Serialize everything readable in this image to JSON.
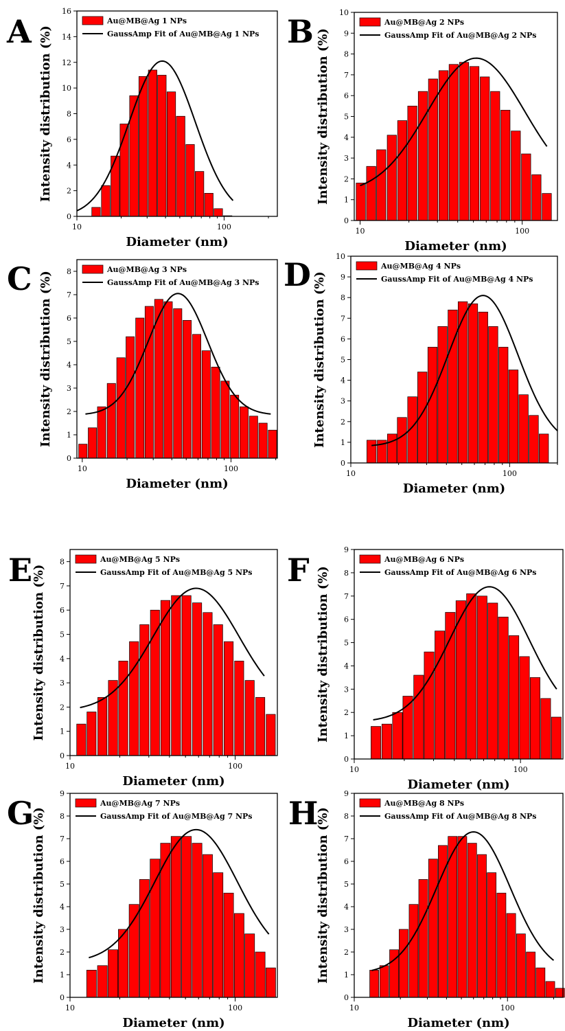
{
  "figure": {
    "panels": [
      {
        "letter": "A",
        "legend": {
          "bar_label": "Au@MB@Ag 1 NPs",
          "fit_label": "GaussAmp Fit of Au@MB@Ag 1 NPs"
        }
      },
      {
        "letter": "B",
        "legend": {
          "bar_label": "Au@MB@Ag 2 NPs",
          "fit_label": "GaussAmp Fit of Au@MB@Ag 2 NPs"
        }
      },
      {
        "letter": "C",
        "legend": {
          "bar_label": "Au@MB@Ag 3 NPs",
          "fit_label": "GaussAmp Fit of Au@MB@Ag 3 NPs"
        }
      },
      {
        "letter": "D",
        "legend": {
          "bar_label": "Au@MB@Ag 4 NPs",
          "fit_label": "GaussAmp Fit of Au@MB@Ag 4 NPs"
        }
      },
      {
        "letter": "E",
        "legend": {
          "bar_label": "Au@MB@Ag 5 NPs",
          "fit_label": "GaussAmp Fit of Au@MB@Ag 5 NPs"
        }
      },
      {
        "letter": "F",
        "legend": {
          "bar_label": "Au@MB@Ag 6 NPs",
          "fit_label": "GaussAmp Fit of Au@MB@Ag 6 NPs"
        }
      },
      {
        "letter": "G",
        "legend": {
          "bar_label": "Au@MB@Ag 7 NPs",
          "fit_label": "GaussAmp Fit of Au@MB@Ag 7 NPs"
        }
      },
      {
        "letter": "H",
        "legend": {
          "bar_label": "Au@MB@Ag 8 NPs",
          "fit_label": "GaussAmp Fit of Au@MB@Ag 8 NPs"
        }
      }
    ],
    "colors": {
      "bar_fill": "#ff0000",
      "bar_stroke": "#000000",
      "fit_line": "#000000",
      "axes": "#000000"
    }
  },
  "chart_data": [
    {
      "panel": "A",
      "type": "bar",
      "xscale": "log",
      "xlabel": "Diameter (nm)",
      "ylabel": "Intensity distribution (%)",
      "xlim": [
        10,
        230
      ],
      "ylim": [
        0,
        16
      ],
      "xticks": [
        10,
        100
      ],
      "yticks": [
        0,
        2,
        4,
        6,
        8,
        10,
        12,
        14,
        16
      ],
      "legend_position": "top-right",
      "series": [
        {
          "name": "Au@MB@Ag 1 NPs",
          "type": "bar",
          "x": [
            13.5,
            15.7,
            18.2,
            21.0,
            24.4,
            28.2,
            32.7,
            37.8,
            43.8,
            50.7,
            58.8,
            68.1,
            78.8,
            91.3,
            105.7
          ],
          "values": [
            0.7,
            2.4,
            4.7,
            7.2,
            9.4,
            10.9,
            11.4,
            11.0,
            9.7,
            7.8,
            5.6,
            3.5,
            1.8,
            0.6,
            0.05
          ]
        },
        {
          "name": "GaussAmp Fit of Au@MB@Ag 1 NPs",
          "type": "line",
          "y0": 0,
          "amplitude": 12.1,
          "xc": 38,
          "w": 0.225,
          "x_range": [
            10,
            115
          ]
        }
      ]
    },
    {
      "panel": "B",
      "type": "bar",
      "xscale": "log",
      "xlabel": "Diameter (nm)",
      "ylabel": "Intensity distribution (%)",
      "xlim": [
        9.2,
        165
      ],
      "ylim": [
        0,
        10
      ],
      "xticks": [
        10,
        100
      ],
      "yticks": [
        0,
        1,
        2,
        3,
        4,
        5,
        6,
        7,
        8,
        9,
        10
      ],
      "legend_position": "top-right",
      "series": [
        {
          "name": "Au@MB@Ag 2 NPs",
          "type": "bar",
          "x": [
            10.1,
            11.7,
            13.5,
            15.7,
            18.2,
            21.0,
            24.4,
            28.2,
            32.7,
            37.8,
            43.8,
            50.7,
            58.8,
            68.1,
            78.8,
            91.3,
            105.7,
            122.4,
            141.8
          ],
          "values": [
            1.8,
            2.6,
            3.4,
            4.1,
            4.8,
            5.5,
            6.2,
            6.8,
            7.2,
            7.5,
            7.6,
            7.4,
            6.9,
            6.2,
            5.3,
            4.3,
            3.2,
            2.2,
            1.3
          ]
        },
        {
          "name": "GaussAmp Fit of Au@MB@Ag 2 NPs",
          "type": "line",
          "y0": 1.3,
          "amplitude": 6.5,
          "xc": 52,
          "w": 0.3,
          "x_range": [
            10,
            142
          ]
        }
      ]
    },
    {
      "panel": "C",
      "type": "bar",
      "xscale": "log",
      "xlabel": "Diameter (nm)",
      "ylabel": "Intensity distribution (%)",
      "xlim": [
        9.2,
        205
      ],
      "ylim": [
        0,
        8.5
      ],
      "xticks": [
        10,
        100
      ],
      "yticks": [
        0,
        1,
        2,
        3,
        4,
        5,
        6,
        7,
        8
      ],
      "legend_position": "top-right",
      "series": [
        {
          "name": "Au@MB@Ag 3 NPs",
          "type": "bar",
          "x": [
            10.1,
            11.7,
            13.5,
            15.7,
            18.2,
            21.0,
            24.4,
            28.2,
            32.7,
            37.8,
            43.8,
            50.7,
            58.8,
            68.1,
            78.8,
            91.3,
            105.7,
            122.4,
            141.8,
            164.2,
            190.1
          ],
          "values": [
            0.6,
            1.3,
            2.2,
            3.2,
            4.3,
            5.2,
            6.0,
            6.5,
            6.8,
            6.7,
            6.4,
            5.9,
            5.3,
            4.6,
            3.9,
            3.3,
            2.7,
            2.2,
            1.8,
            1.5,
            1.2
          ]
        },
        {
          "name": "GaussAmp Fit of Au@MB@Ag 3 NPs",
          "type": "line",
          "y0": 1.85,
          "amplitude": 5.2,
          "xc": 44,
          "w": 0.2,
          "x_range": [
            10.5,
            185
          ]
        }
      ]
    },
    {
      "panel": "D",
      "type": "bar",
      "xscale": "log",
      "xlabel": "Diameter (nm)",
      "ylabel": "Intensity distribution (%)",
      "xlim": [
        10,
        200
      ],
      "ylim": [
        0,
        10
      ],
      "xticks": [
        10,
        100
      ],
      "yticks": [
        0,
        1,
        2,
        3,
        4,
        5,
        6,
        7,
        8,
        9,
        10
      ],
      "legend_position": "top-right",
      "series": [
        {
          "name": "Au@MB@Ag 4 NPs",
          "type": "bar",
          "x": [
            13.5,
            15.7,
            18.2,
            21.0,
            24.4,
            28.2,
            32.7,
            37.8,
            43.8,
            50.7,
            58.8,
            68.1,
            78.8,
            91.3,
            105.7,
            122.4,
            141.8,
            164.2
          ],
          "values": [
            1.1,
            1.1,
            1.4,
            2.2,
            3.2,
            4.4,
            5.6,
            6.6,
            7.4,
            7.8,
            7.7,
            7.3,
            6.6,
            5.6,
            4.5,
            3.3,
            2.3,
            1.4
          ]
        },
        {
          "name": "GaussAmp Fit of Au@MB@Ag 4 NPs",
          "type": "line",
          "y0": 0.8,
          "amplitude": 7.3,
          "xc": 68,
          "w": 0.22,
          "x_range": [
            13.5,
            200
          ]
        }
      ]
    },
    {
      "panel": "E",
      "type": "bar",
      "xscale": "log",
      "xlabel": "Diameter (nm)",
      "ylabel": "Intensity distribution (%)",
      "xlim": [
        10,
        180
      ],
      "ylim": [
        0,
        8.5
      ],
      "xticks": [
        10,
        100
      ],
      "yticks": [
        0,
        1,
        2,
        3,
        4,
        5,
        6,
        7,
        8
      ],
      "legend_position": "top-right",
      "series": [
        {
          "name": "Au@MB@Ag 5 NPs",
          "type": "bar",
          "x": [
            11.7,
            13.5,
            15.7,
            18.2,
            21.0,
            24.4,
            28.2,
            32.7,
            37.8,
            43.8,
            50.7,
            58.8,
            68.1,
            78.8,
            91.3,
            105.7,
            122.4,
            141.8,
            164.2
          ],
          "values": [
            1.3,
            1.8,
            2.4,
            3.1,
            3.9,
            4.7,
            5.4,
            6.0,
            6.4,
            6.6,
            6.6,
            6.3,
            5.9,
            5.4,
            4.7,
            3.9,
            3.1,
            2.4,
            1.7
          ]
        },
        {
          "name": "GaussAmp Fit of Au@MB@Ag 5 NPs",
          "type": "line",
          "y0": 1.85,
          "amplitude": 5.05,
          "xc": 58,
          "w": 0.26,
          "x_range": [
            11.5,
            150
          ]
        }
      ]
    },
    {
      "panel": "F",
      "type": "bar",
      "xscale": "log",
      "xlabel": "Diameter (nm)",
      "ylabel": "Intensity distribution (%)",
      "xlim": [
        10,
        180
      ],
      "ylim": [
        0,
        9
      ],
      "xticks": [
        10,
        100
      ],
      "yticks": [
        0,
        1,
        2,
        3,
        4,
        5,
        6,
        7,
        8,
        9
      ],
      "legend_position": "top-right",
      "series": [
        {
          "name": "Au@MB@Ag 6 NPs",
          "type": "bar",
          "x": [
            13.5,
            15.7,
            18.2,
            21.0,
            24.4,
            28.2,
            32.7,
            37.8,
            43.8,
            50.7,
            58.8,
            68.1,
            78.8,
            91.3,
            105.7,
            122.4,
            141.8,
            164.2
          ],
          "values": [
            1.4,
            1.5,
            2.0,
            2.7,
            3.6,
            4.6,
            5.5,
            6.3,
            6.8,
            7.1,
            7.0,
            6.7,
            6.1,
            5.3,
            4.4,
            3.5,
            2.6,
            1.8
          ]
        },
        {
          "name": "GaussAmp Fit of Au@MB@Ag 6 NPs",
          "type": "line",
          "y0": 1.6,
          "amplitude": 5.8,
          "xc": 65,
          "w": 0.24,
          "x_range": [
            13,
            165
          ]
        }
      ]
    },
    {
      "panel": "G",
      "type": "bar",
      "xscale": "log",
      "xlabel": "Diameter (nm)",
      "ylabel": "Intensity distribution (%)",
      "xlim": [
        10,
        180
      ],
      "ylim": [
        0,
        9
      ],
      "xticks": [
        10,
        100
      ],
      "yticks": [
        0,
        1,
        2,
        3,
        4,
        5,
        6,
        7,
        8,
        9
      ],
      "legend_position": "top-right",
      "series": [
        {
          "name": "Au@MB@Ag 7 NPs",
          "type": "bar",
          "x": [
            13.5,
            15.7,
            18.2,
            21.0,
            24.4,
            28.2,
            32.7,
            37.8,
            43.8,
            50.7,
            58.8,
            68.1,
            78.8,
            91.3,
            105.7,
            122.4,
            141.8,
            164.2
          ],
          "values": [
            1.2,
            1.4,
            2.1,
            3.0,
            4.1,
            5.2,
            6.1,
            6.8,
            7.1,
            7.1,
            6.8,
            6.3,
            5.5,
            4.6,
            3.7,
            2.8,
            2.0,
            1.3
          ]
        },
        {
          "name": "GaussAmp Fit of Au@MB@Ag 7 NPs",
          "type": "line",
          "y0": 1.55,
          "amplitude": 5.85,
          "xc": 58,
          "w": 0.25,
          "x_range": [
            13,
            160
          ]
        }
      ]
    },
    {
      "panel": "H",
      "type": "bar",
      "xscale": "log",
      "xlabel": "Diameter (nm)",
      "ylabel": "Intensity distribution (%)",
      "xlim": [
        10,
        230
      ],
      "ylim": [
        0,
        9
      ],
      "xticks": [
        10,
        100
      ],
      "yticks": [
        0,
        1,
        2,
        3,
        4,
        5,
        6,
        7,
        8,
        9
      ],
      "legend_position": "top-right",
      "series": [
        {
          "name": "Au@MB@Ag 8 NPs",
          "type": "bar",
          "x": [
            13.5,
            15.7,
            18.2,
            21.0,
            24.4,
            28.2,
            32.7,
            37.8,
            43.8,
            50.7,
            58.8,
            68.1,
            78.8,
            91.3,
            105.7,
            122.4,
            141.8,
            164.2,
            190.1,
            220.1
          ],
          "values": [
            1.2,
            1.4,
            2.1,
            3.0,
            4.1,
            5.2,
            6.1,
            6.7,
            7.1,
            7.1,
            6.8,
            6.3,
            5.5,
            4.6,
            3.7,
            2.8,
            2.0,
            1.3,
            0.7,
            0.4
          ]
        },
        {
          "name": "GaussAmp Fit of Au@MB@Ag 8 NPs",
          "type": "line",
          "y0": 1.05,
          "amplitude": 6.25,
          "xc": 60,
          "w": 0.24,
          "x_range": [
            13,
            200
          ]
        }
      ]
    }
  ]
}
